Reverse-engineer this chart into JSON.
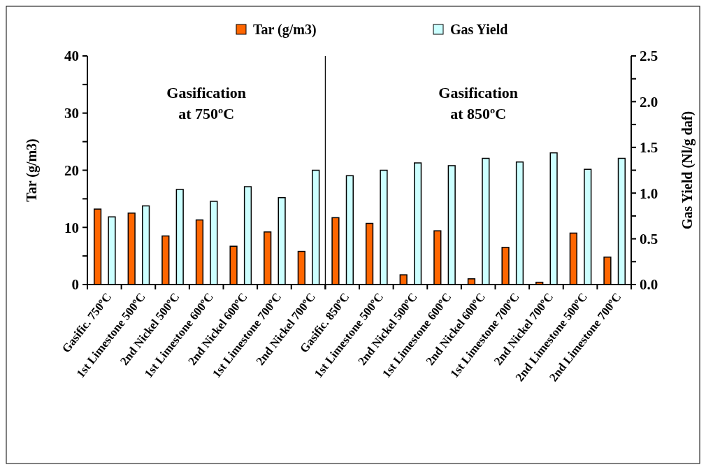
{
  "chart_data": [
    {
      "type": "bar",
      "categories": [
        "Gasific. 750ºC",
        "1st Limestone 500ºC",
        "2nd Nickel 500ºC",
        "1st Limestone 600ºC",
        "2nd Nickel 600ºC",
        "1st Limestone 700ºC",
        "2nd Nickel 700ºC"
      ],
      "series": [
        {
          "name": "Tar (g/m3)",
          "color": "#ff6600",
          "values": [
            13.2,
            12.5,
            8.5,
            11.3,
            6.7,
            9.2,
            5.8
          ]
        },
        {
          "name": "Gas Yield",
          "color": "#ccffff",
          "axis": "y2",
          "values": [
            0.74,
            0.86,
            1.04,
            0.91,
            1.07,
            0.95,
            1.25
          ]
        }
      ],
      "ylabel": "Tar (g/m3)",
      "ylim": [
        0,
        40
      ],
      "yticks": [
        0,
        {
          "value": 5,
          "label": null
        },
        10,
        {
          "value": 15,
          "label": null
        },
        20,
        {
          "value": 25,
          "label": null
        },
        30,
        {
          "value": 35,
          "label": null
        },
        40
      ],
      "y2lim": [
        0,
        2.5
      ],
      "tick_labels": "xy",
      "annotations": [
        "Gasification\nat 750ºC"
      ],
      "legend": "top",
      "grid": false
    },
    {
      "type": "bar",
      "categories": [
        "Gasific. 850ºC",
        "1st Limestone 500ºC",
        "2nd Nickel 500ºC",
        "1st Limestone 600ºC",
        "2nd Nickel 600ºC",
        "1st Limestone 700ºC",
        "2nd Nickel 700ºC",
        "2nd Limestone 500ºC",
        "2nd Limestone 700ºC"
      ],
      "series": [
        {
          "color": "#ff6600",
          "values": [
            11.7,
            10.7,
            1.7,
            9.4,
            1.0,
            6.5,
            0.4,
            9.0,
            4.8
          ]
        },
        {
          "color": "#ccffff",
          "axis": "y2",
          "values": [
            1.19,
            1.25,
            1.33,
            1.3,
            1.38,
            1.34,
            1.44,
            1.26,
            1.38
          ]
        }
      ],
      "y2label": "Gas Yield (Nl/g daf)",
      "ylim": [
        0,
        40
      ],
      "y2lim": [
        0,
        2.5
      ],
      "y2ticks": [
        {
          "value": 0,
          "label": "0.0"
        },
        {
          "value": 0.25,
          "label": null
        },
        {
          "value": 0.5,
          "label": "0.5"
        },
        {
          "value": 0.75,
          "label": null
        },
        {
          "value": 1,
          "label": "1.0"
        },
        {
          "value": 1.25,
          "label": null
        },
        {
          "value": 1.5,
          "label": "1.5"
        },
        {
          "value": 1.75,
          "label": null
        },
        {
          "value": 2,
          "label": "2.0"
        },
        {
          "value": 2.25,
          "label": null
        },
        {
          "value": 2.5,
          "label": "2.5"
        }
      ],
      "tick_labels": "xy2",
      "annotations": [
        "Gasification\nat 850ºC"
      ],
      "grid": false
    }
  ]
}
